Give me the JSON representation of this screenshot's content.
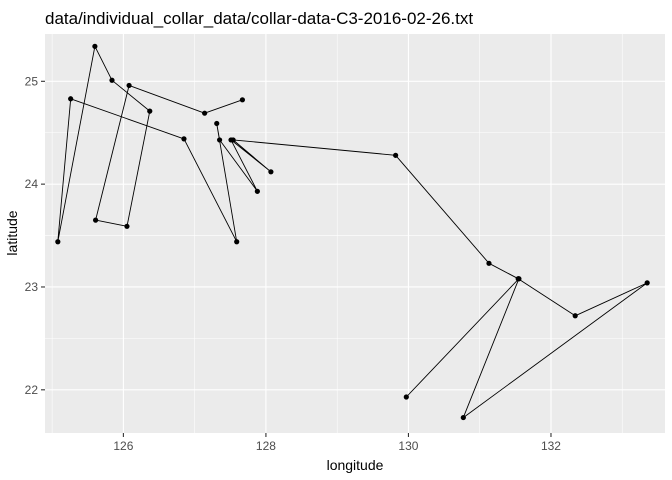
{
  "chart_data": {
    "type": "line",
    "title": "data/individual_collar_data/collar-data-C3-2016-02-26.txt",
    "xlabel": "longitude",
    "ylabel": "latitude",
    "xlim": [
      124.9,
      133.6
    ],
    "ylim": [
      21.58,
      25.46
    ],
    "x_ticks": [
      126,
      128,
      130,
      132
    ],
    "x_tick_labels": [
      "126",
      "128",
      "130",
      "132"
    ],
    "y_ticks": [
      22,
      23,
      24,
      25
    ],
    "y_tick_labels": [
      "22",
      "23",
      "24",
      "25"
    ],
    "grid": true,
    "background": "#ebebeb",
    "grid_color": "#ffffff",
    "line_color": "#000000",
    "point_color": "#000000",
    "series": [
      {
        "x": [
          129.97,
          131.55,
          130.77,
          133.35,
          132.34,
          131.54,
          131.13,
          129.82,
          127.54,
          128.07,
          127.51,
          127.88,
          127.35,
          127.31,
          127.59,
          126.85,
          125.26,
          125.08,
          125.6,
          125.84,
          126.37,
          126.05,
          125.61,
          126.08,
          127.14,
          127.67
        ],
        "y": [
          21.93,
          23.08,
          21.73,
          23.04,
          22.72,
          23.08,
          23.23,
          24.28,
          24.43,
          24.12,
          24.43,
          23.93,
          24.43,
          24.59,
          23.44,
          24.44,
          24.83,
          23.44,
          25.34,
          25.01,
          24.71,
          23.59,
          23.65,
          24.96,
          24.69,
          24.82
        ]
      }
    ]
  }
}
